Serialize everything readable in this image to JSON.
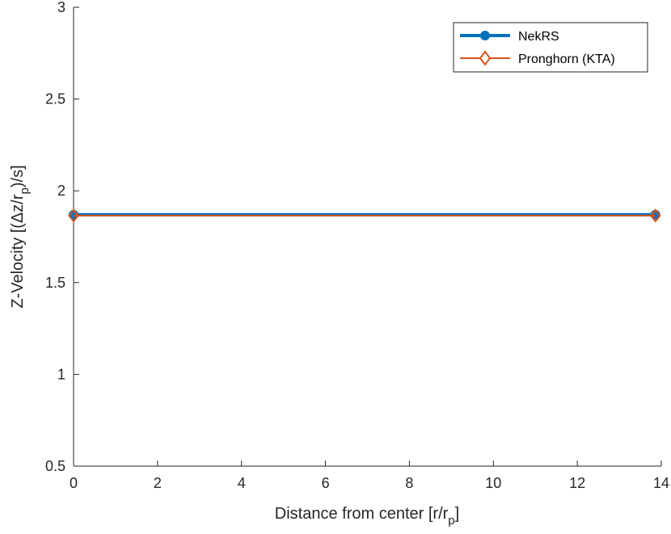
{
  "chart_data": {
    "type": "line",
    "xlabel": "Distance from center [r/r",
    "xlabel_sub": "p",
    "xlabel_end": "]",
    "ylabel": "Z-Velocity [(Δz/r",
    "ylabel_sub": "p",
    "ylabel_end": ")/s]",
    "xlim": [
      0,
      14
    ],
    "ylim": [
      0.5,
      3
    ],
    "xticks": [
      0,
      2,
      4,
      6,
      8,
      10,
      12,
      14
    ],
    "xtick_labels": [
      "0",
      "2",
      "4",
      "6",
      "8",
      "10",
      "12",
      "14"
    ],
    "yticks": [
      0.5,
      1,
      1.5,
      2,
      2.5,
      3
    ],
    "ytick_labels": [
      "0.5",
      "1",
      "1.5",
      "2",
      "2.5",
      "3"
    ],
    "grid": false,
    "legend_position": "top-right",
    "series": [
      {
        "name": "NekRS",
        "color": "#0072BD",
        "marker": "circle",
        "x": [
          0,
          13.86
        ],
        "y": [
          1.87,
          1.87
        ]
      },
      {
        "name": "Pronghorn (KTA)",
        "color": "#D95319",
        "marker": "diamond",
        "x": [
          0,
          13.86
        ],
        "y": [
          1.865,
          1.865
        ]
      }
    ]
  }
}
